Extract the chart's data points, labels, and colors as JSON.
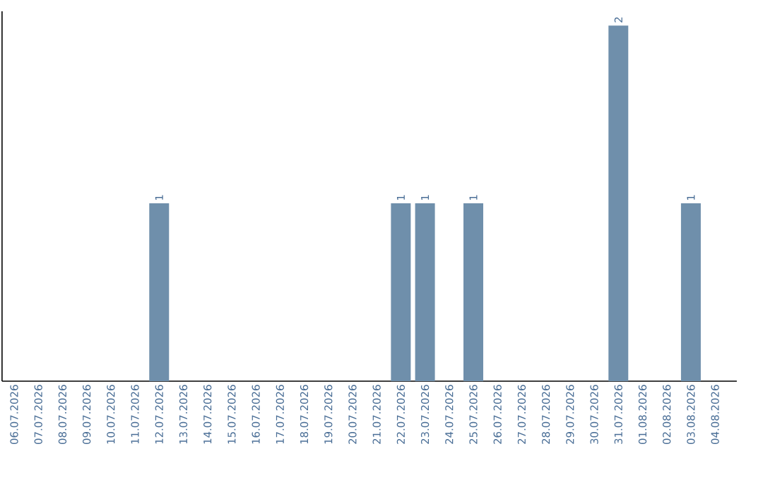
{
  "chart_data": {
    "type": "bar",
    "categories": [
      "06.07.2026",
      "07.07.2026",
      "08.07.2026",
      "09.07.2026",
      "10.07.2026",
      "11.07.2026",
      "12.07.2026",
      "13.07.2026",
      "14.07.2026",
      "15.07.2026",
      "16.07.2026",
      "17.07.2026",
      "18.07.2026",
      "19.07.2026",
      "20.07.2026",
      "21.07.2026",
      "22.07.2026",
      "23.07.2026",
      "24.07.2026",
      "25.07.2026",
      "26.07.2026",
      "27.07.2026",
      "28.07.2026",
      "29.07.2026",
      "30.07.2026",
      "31.07.2026",
      "01.08.2026",
      "02.08.2026",
      "03.08.2026",
      "04.08.2026"
    ],
    "values": [
      0,
      0,
      0,
      0,
      0,
      0,
      1,
      0,
      0,
      0,
      0,
      0,
      0,
      0,
      0,
      0,
      1,
      1,
      0,
      1,
      0,
      0,
      0,
      0,
      0,
      2,
      0,
      0,
      1,
      0
    ],
    "value_labels": [
      null,
      null,
      null,
      null,
      null,
      null,
      "1",
      null,
      null,
      null,
      null,
      null,
      null,
      null,
      null,
      null,
      "1",
      "1",
      null,
      "1",
      null,
      null,
      null,
      null,
      null,
      "2",
      null,
      null,
      "1",
      null
    ],
    "color": "#6f8fab",
    "ylim": [
      0,
      2.08
    ],
    "tick_labels": "x"
  }
}
